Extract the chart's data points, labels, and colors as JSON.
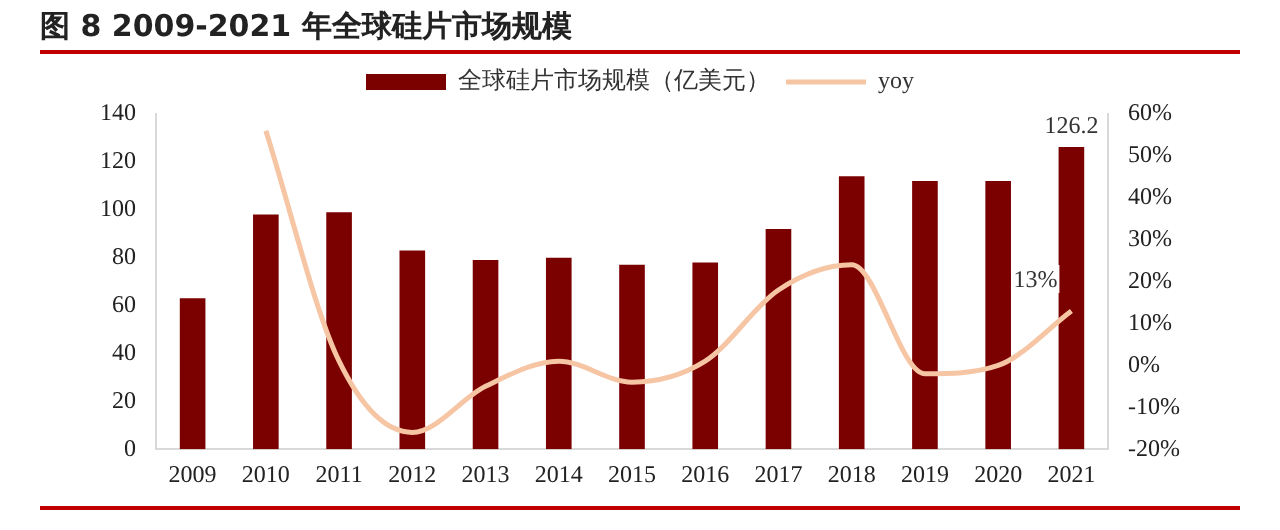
{
  "chart_data": {
    "type": "bar",
    "title": "图 8 2009-2021 年全球硅片市场规模",
    "categories": [
      "2009",
      "2010",
      "2011",
      "2012",
      "2013",
      "2014",
      "2015",
      "2016",
      "2017",
      "2018",
      "2019",
      "2020",
      "2021"
    ],
    "series": [
      {
        "name": "全球硅片市场规模（亿美元）",
        "color": "#7b0000",
        "values": [
          63,
          98,
          99,
          83,
          79,
          80,
          77,
          78,
          92,
          114,
          112,
          112,
          126.2
        ],
        "value_labels": [
          null,
          null,
          null,
          null,
          null,
          null,
          null,
          null,
          null,
          null,
          null,
          null,
          "126.2"
        ]
      },
      {
        "name": "yoy",
        "type": "line",
        "axis": "y2",
        "color": "#f6c5a4",
        "values": [
          null,
          56,
          1,
          -16,
          -5,
          1,
          -4,
          1,
          18,
          24,
          -2,
          0,
          13
        ],
        "value_labels": [
          null,
          null,
          null,
          null,
          null,
          null,
          null,
          null,
          null,
          null,
          null,
          null,
          "13%"
        ]
      }
    ],
    "ylim": [
      0,
      140
    ],
    "yticks": [
      0,
      20,
      40,
      60,
      80,
      100,
      120,
      140
    ],
    "y2lim": [
      -20,
      60
    ],
    "y2ticks": [
      {
        "value": -20,
        "label": "-20%"
      },
      {
        "value": -10,
        "label": "-10%"
      },
      {
        "value": 0,
        "label": "0%"
      },
      {
        "value": 10,
        "label": "10%"
      },
      {
        "value": 20,
        "label": "20%"
      },
      {
        "value": 30,
        "label": "30%"
      },
      {
        "value": 40,
        "label": "40%"
      },
      {
        "value": 50,
        "label": "50%"
      },
      {
        "value": 60,
        "label": "60%"
      }
    ],
    "legend": "top",
    "grid": false,
    "marker": "none"
  }
}
